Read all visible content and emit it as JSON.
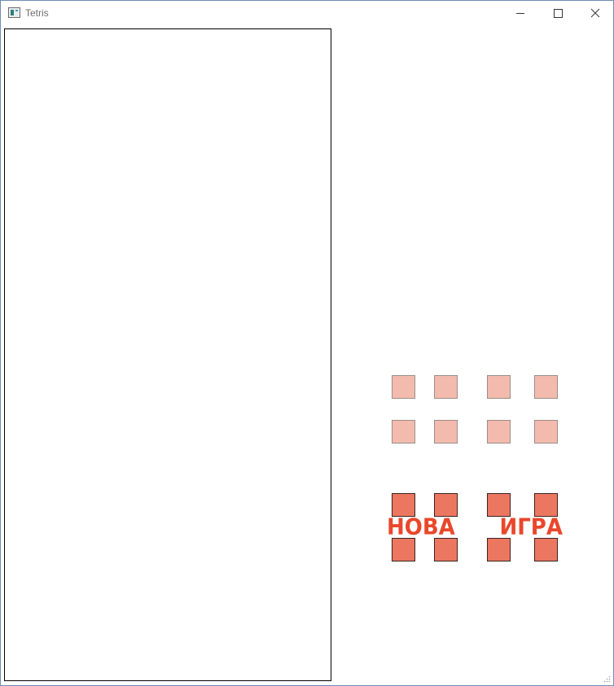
{
  "window": {
    "title": "Tetris"
  },
  "menu_button": {
    "word1": "НОВА",
    "word2": "ИГРА"
  },
  "colors": {
    "light_square": "#f3bbad",
    "dark_square": "#ec7760",
    "label": "#e9472b",
    "board_border": "#000000"
  },
  "icons": [
    "app-icon",
    "minimize-icon",
    "maximize-icon",
    "close-icon",
    "resize-grip-icon"
  ]
}
